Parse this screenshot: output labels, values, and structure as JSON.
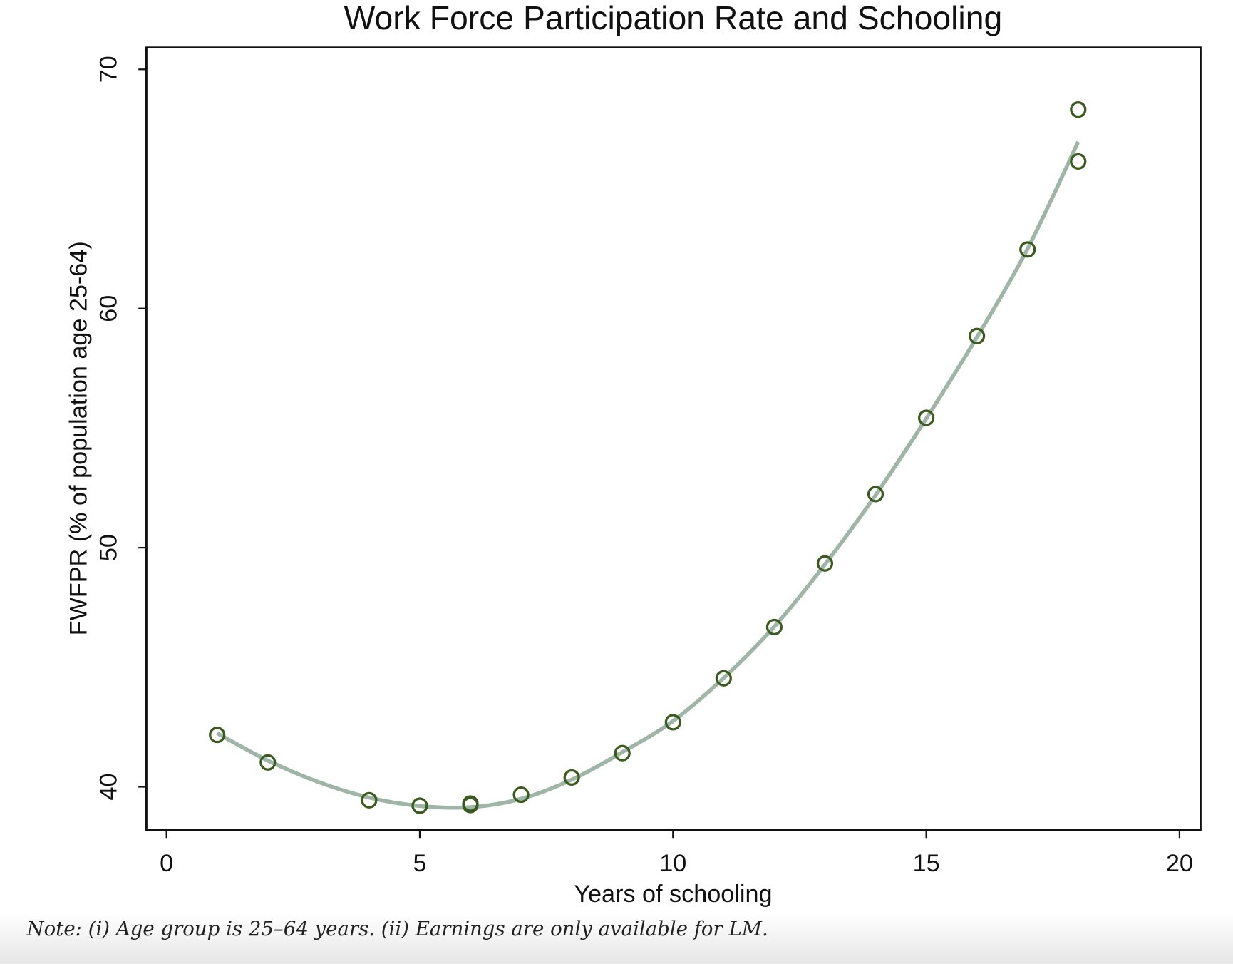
{
  "chart_data": {
    "type": "scatter",
    "title": "Work Force Participation Rate and Schooling",
    "x_label": "Years of schooling",
    "y_label": "FWFPR (% of population age 25-64)",
    "xlim": [
      -0.4,
      20.42
    ],
    "ylim": [
      38.19,
      70.92
    ],
    "xticks": [
      0,
      5,
      10,
      15,
      20
    ],
    "yticks": [
      40,
      50,
      60,
      70
    ],
    "grid": false,
    "series": [
      {
        "type": "scatter",
        "color": "#3b5a1e",
        "x": [
          1,
          2,
          4,
          5,
          6,
          6,
          7,
          8,
          9,
          10,
          11,
          12,
          13,
          14,
          15,
          16,
          17,
          18,
          18
        ],
        "values": [
          42.17,
          41.02,
          39.44,
          39.21,
          39.24,
          39.3,
          39.67,
          40.39,
          41.41,
          42.7,
          44.54,
          46.68,
          49.34,
          52.24,
          55.43,
          58.85,
          62.47,
          66.15,
          68.32
        ]
      },
      {
        "type": "line",
        "color": "#9fb5a8",
        "x": [
          1,
          2,
          3,
          4,
          5,
          6,
          7,
          8,
          9,
          10,
          11,
          12,
          13,
          14,
          15,
          16,
          17,
          18
        ],
        "values": [
          42.24,
          41.1,
          40.2,
          39.55,
          39.2,
          39.15,
          39.5,
          40.3,
          41.45,
          42.75,
          44.55,
          46.7,
          49.3,
          52.2,
          55.4,
          58.8,
          62.5,
          66.97
        ]
      }
    ],
    "note": "Note: (i) Age group is 25–64 years. (ii) Earnings are only available for LM."
  }
}
